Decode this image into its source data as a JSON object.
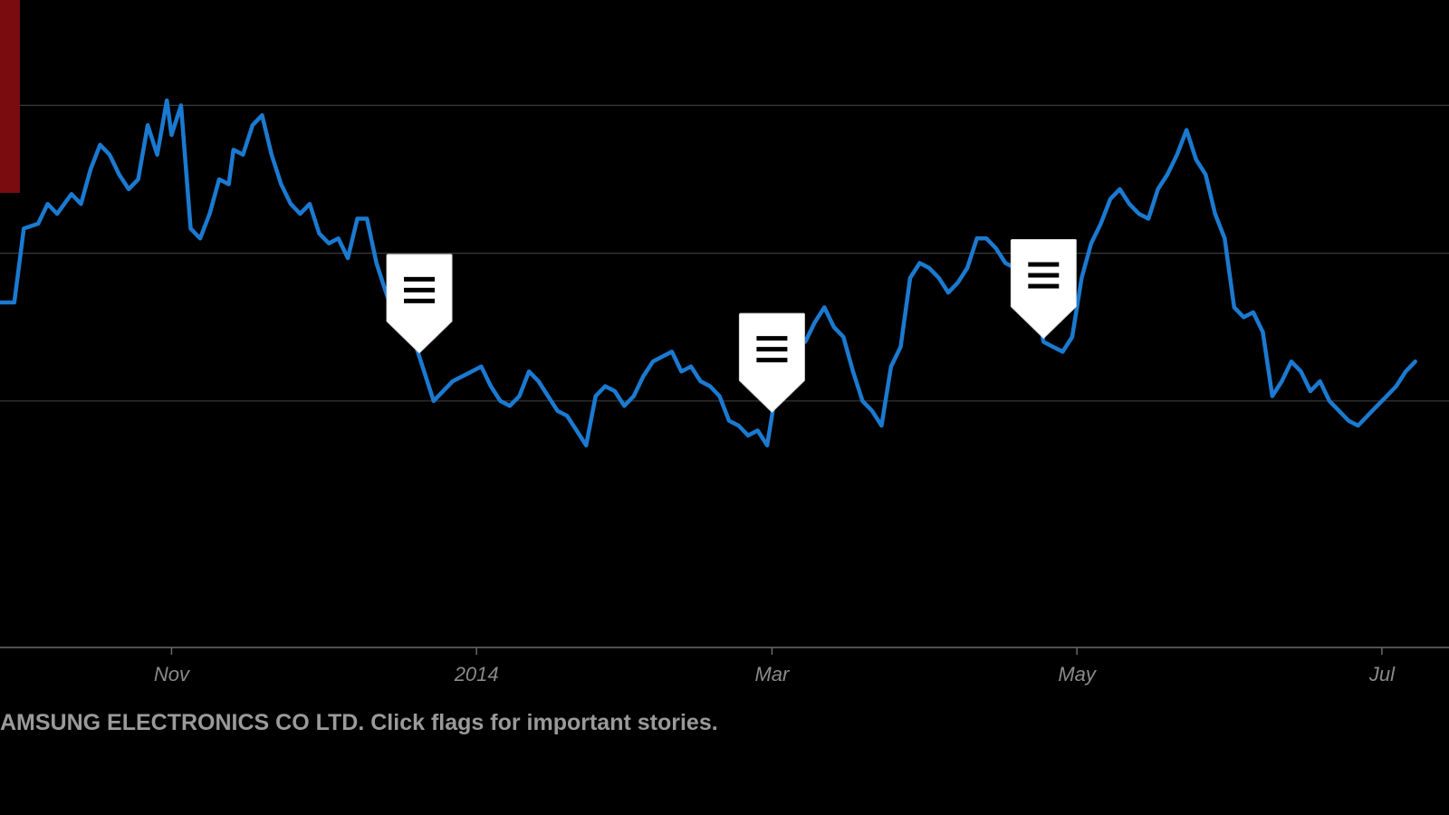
{
  "caption": "AMSUNG ELECTRONICS CO LTD. Click flags for important stories.",
  "colors": {
    "background": "#000000",
    "line": "#1b7ad0",
    "grid": "#3a3a3a",
    "axis": "#6a6a6a",
    "tick_label": "#8a8a8a",
    "caption": "#9a9a9a",
    "marker": "#7a0c10",
    "flag_fill": "#ffffff",
    "flag_icon": "#000000"
  },
  "flags": [
    {
      "name": "news-flag-1",
      "icon": "menu-icon",
      "x": 88
    },
    {
      "name": "news-flag-2",
      "icon": "menu-icon",
      "x": 162
    },
    {
      "name": "news-flag-3",
      "icon": "menu-icon",
      "x": 219
    }
  ],
  "chart_data": {
    "type": "line",
    "title": "",
    "xlabel": "",
    "ylabel": "",
    "xlim": [
      0,
      298
    ],
    "ylim": [
      0,
      100
    ],
    "x_ticks": [
      {
        "label": "Nov",
        "x": 36
      },
      {
        "label": "2014",
        "x": 100
      },
      {
        "label": "Mar",
        "x": 162
      },
      {
        "label": "May",
        "x": 226
      },
      {
        "label": "Jul",
        "x": 290
      }
    ],
    "gridlines_y": [
      30,
      60,
      90
    ],
    "y_tick_labels": [],
    "legend": "none",
    "series": [
      {
        "x": [
          0,
          3,
          5,
          8,
          10,
          12,
          15,
          17,
          19,
          21,
          23,
          25,
          27,
          29,
          31,
          33,
          35,
          36,
          38,
          40,
          42,
          44,
          46,
          48,
          49,
          51,
          53,
          55,
          57,
          59,
          61,
          63,
          65,
          67,
          69,
          71,
          73,
          75,
          77,
          79,
          81,
          83,
          85,
          87,
          89,
          91,
          93,
          95,
          97,
          99,
          101,
          103,
          105,
          107,
          109,
          111,
          113,
          115,
          117,
          119,
          121,
          123,
          125,
          127,
          129,
          131,
          133,
          135,
          137,
          139,
          141,
          143,
          145,
          147,
          149,
          151,
          153,
          155,
          157,
          159,
          161,
          163,
          165,
          167,
          169,
          171,
          173,
          175,
          177,
          179,
          181,
          183,
          185,
          187,
          189,
          191,
          193,
          195,
          197,
          199,
          201,
          203,
          205,
          207,
          209,
          211,
          213,
          215,
          217,
          219,
          221,
          223,
          225,
          227,
          229,
          231,
          233,
          235,
          237,
          239,
          241,
          243,
          245,
          247,
          249,
          251,
          253,
          255,
          257,
          259,
          261,
          263,
          265,
          267,
          269,
          271,
          273,
          275,
          277,
          279,
          281,
          283,
          285,
          287,
          289,
          291,
          293,
          295,
          297
        ],
        "y": [
          50,
          50,
          65,
          66,
          70,
          68,
          72,
          70,
          77,
          82,
          80,
          76,
          73,
          75,
          86,
          80,
          91,
          84,
          90,
          65,
          63,
          68,
          75,
          74,
          81,
          80,
          86,
          88,
          80,
          74,
          70,
          68,
          70,
          64,
          62,
          63,
          59,
          67,
          67,
          58,
          52,
          47,
          45,
          42,
          36,
          30,
          32,
          34,
          35,
          36,
          37,
          33,
          30,
          29,
          31,
          36,
          34,
          31,
          28,
          27,
          24,
          21,
          31,
          33,
          32,
          29,
          31,
          35,
          38,
          39,
          40,
          36,
          37,
          34,
          33,
          31,
          26,
          25,
          23,
          24,
          21,
          33,
          43,
          44,
          42,
          46,
          49,
          45,
          43,
          36,
          30,
          28,
          25,
          37,
          41,
          55,
          58,
          57,
          55,
          52,
          54,
          57,
          63,
          63,
          61,
          58,
          57,
          55,
          53,
          42,
          41,
          40,
          43,
          55,
          62,
          66,
          71,
          73,
          70,
          68,
          67,
          73,
          76,
          80,
          85,
          79,
          76,
          68,
          63,
          49,
          47,
          48,
          44,
          31,
          34,
          38,
          36,
          32,
          34,
          30,
          28,
          26,
          25,
          27,
          29,
          31,
          33,
          36,
          38
        ]
      }
    ]
  }
}
